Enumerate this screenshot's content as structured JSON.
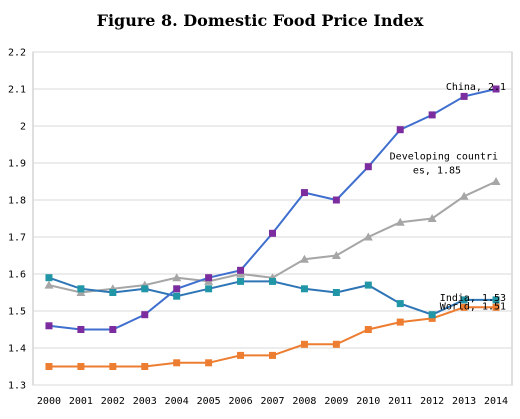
{
  "chart_data": {
    "type": "line",
    "title": "Figure 8. Domestic Food Price Index",
    "xlabel": "",
    "ylabel": "",
    "x": [
      "2000",
      "2001",
      "2002",
      "2003",
      "2004",
      "2005",
      "2006",
      "2007",
      "2008",
      "2009",
      "2010",
      "2011",
      "2012",
      "2013",
      "2014"
    ],
    "ylim": [
      1.3,
      2.2
    ],
    "yticks": [
      "1.3",
      "1.4",
      "1.5",
      "1.6",
      "1.7",
      "1.8",
      "1.9",
      "2",
      "2.1",
      "2.2"
    ],
    "grid": true,
    "legend": "none (inline data labels)",
    "series": [
      {
        "name": "China",
        "color": "#3f6fce",
        "marker_color": "#7b2c9e",
        "marker": "square",
        "values": [
          1.46,
          1.45,
          1.45,
          1.49,
          1.56,
          1.59,
          1.61,
          1.71,
          1.82,
          1.8,
          1.89,
          1.99,
          2.03,
          2.08,
          2.1
        ],
        "end_label": "China, 2.1"
      },
      {
        "name": "Developing countries",
        "color": "#a6a6a6",
        "marker_color": "#a6a6a6",
        "marker": "triangle",
        "values": [
          1.57,
          1.55,
          1.56,
          1.57,
          1.59,
          1.58,
          1.6,
          1.59,
          1.64,
          1.65,
          1.7,
          1.74,
          1.75,
          1.81,
          1.85
        ],
        "end_label_line1": "Developing countri",
        "end_label_line2": "es, 1.85"
      },
      {
        "name": "India",
        "color": "#2e75b6",
        "marker_color": "#2196a6",
        "marker": "square",
        "values": [
          1.59,
          1.56,
          1.55,
          1.56,
          1.54,
          1.56,
          1.58,
          1.58,
          1.56,
          1.55,
          1.57,
          1.52,
          1.49,
          1.53,
          1.53
        ],
        "end_label": "India, 1.53"
      },
      {
        "name": "World",
        "color": "#ed7d31",
        "marker_color": "#ed7d31",
        "marker": "square",
        "values": [
          1.35,
          1.35,
          1.35,
          1.35,
          1.36,
          1.36,
          1.38,
          1.38,
          1.41,
          1.41,
          1.45,
          1.47,
          1.48,
          1.51,
          1.51
        ],
        "end_label": "World, 1.51"
      }
    ]
  }
}
